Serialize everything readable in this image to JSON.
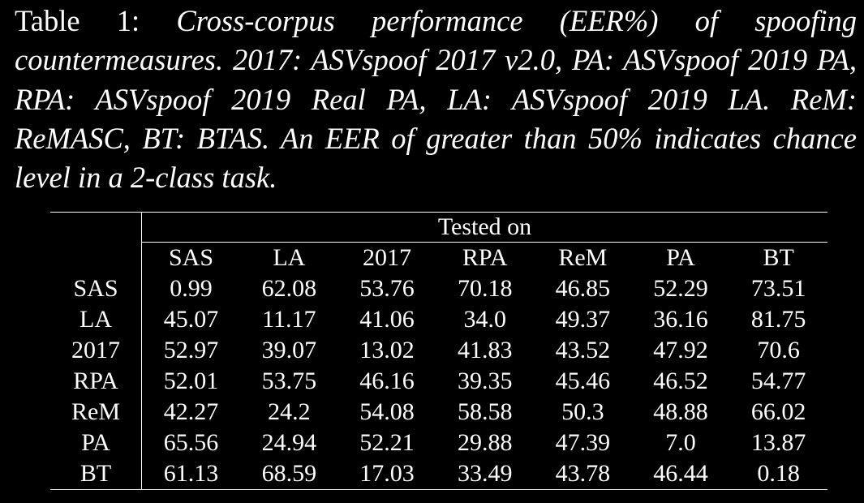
{
  "caption": {
    "label": "Table 1:",
    "text": "Cross-corpus performance (EER%) of spoofing countermeasures. 2017: ASVspoof 2017 v2.0, PA: ASVspoof 2019 PA, RPA: ASVspoof 2019 Real PA, LA: ASVspoof 2019 LA. ReM: ReMASC, BT: BTAS. An EER of greater than 50% indicates chance level in a 2-class task."
  },
  "table": {
    "group_header": "Tested on",
    "columns": [
      "SAS",
      "LA",
      "2017",
      "RPA",
      "ReM",
      "PA",
      "BT"
    ],
    "rows": [
      {
        "label": "SAS",
        "values": [
          "0.99",
          "62.08",
          "53.76",
          "70.18",
          "46.85",
          "52.29",
          "73.51"
        ],
        "best_index": 0
      },
      {
        "label": "LA",
        "values": [
          "45.07",
          "11.17",
          "41.06",
          "34.0",
          "49.37",
          "36.16",
          "81.75"
        ],
        "best_index": 1
      },
      {
        "label": "2017",
        "values": [
          "52.97",
          "39.07",
          "13.02",
          "41.83",
          "43.52",
          "47.92",
          "70.6"
        ],
        "best_index": 2
      },
      {
        "label": "RPA",
        "values": [
          "52.01",
          "53.75",
          "46.16",
          "39.35",
          "45.46",
          "46.52",
          "54.77"
        ],
        "best_index": 3
      },
      {
        "label": "ReM",
        "values": [
          "42.27",
          "24.2",
          "54.08",
          "58.58",
          "50.3",
          "48.88",
          "66.02"
        ],
        "best_index": 4
      },
      {
        "label": "PA",
        "values": [
          "65.56",
          "24.94",
          "52.21",
          "29.88",
          "47.39",
          "7.0",
          "13.87"
        ],
        "best_index": 5
      },
      {
        "label": "BT",
        "values": [
          "61.13",
          "68.59",
          "17.03",
          "33.49",
          "43.78",
          "46.44",
          "0.18"
        ],
        "best_index": 6
      }
    ]
  }
}
